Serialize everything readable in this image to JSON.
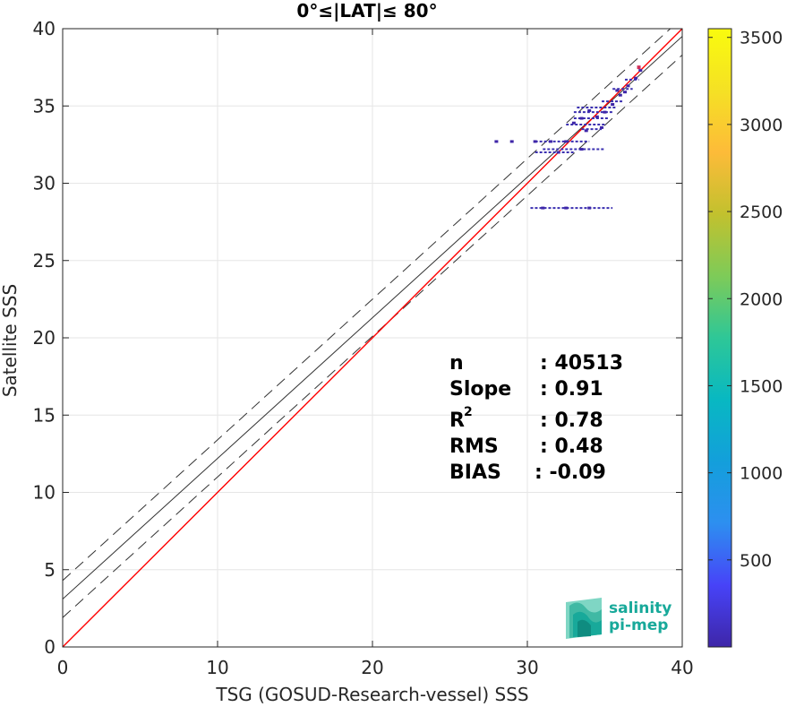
{
  "chart_data": {
    "type": "scatter",
    "title": "0°≤|LAT|≤ 80°",
    "xlabel": "TSG (GOSUD-Research-vessel) SSS",
    "ylabel": "Satellite SSS",
    "xlim": [
      0,
      40
    ],
    "ylim": [
      0,
      40
    ],
    "xticks": [
      "0",
      "10",
      "20",
      "30",
      "40"
    ],
    "yticks": [
      "0",
      "5",
      "10",
      "15",
      "20",
      "25",
      "30",
      "35",
      "40"
    ],
    "grid": true,
    "colorbar": {
      "range": [
        0,
        3550
      ],
      "ticks": [
        "500",
        "1000",
        "1500",
        "2000",
        "2500",
        "3000",
        "3500"
      ],
      "tick_values": [
        500,
        1000,
        1500,
        2000,
        2500,
        3000,
        3500
      ],
      "colormap": [
        "#3e26a8",
        "#4743f8",
        "#2d8ff0",
        "#139fdb",
        "#08b8c2",
        "#2ec797",
        "#7ecb58",
        "#c2c12e",
        "#fdbb39",
        "#f5e124",
        "#f9fb0e"
      ]
    },
    "lines": {
      "identity": {
        "slope": 1,
        "intercept": 0,
        "color": "#ff0000"
      },
      "fit": {
        "slope": 0.91,
        "intercept": 3.1,
        "color": "#000000"
      },
      "fit_upper": {
        "slope": 0.91,
        "intercept": 4.3,
        "style": "dashed"
      },
      "fit_lower": {
        "slope": 0.91,
        "intercept": 1.9,
        "style": "dashed"
      }
    },
    "points": [
      {
        "x": 34.5,
        "y": 34.3
      },
      {
        "x": 35.0,
        "y": 34.6
      },
      {
        "x": 35.5,
        "y": 35.1
      },
      {
        "x": 36.0,
        "y": 35.7
      },
      {
        "x": 36.5,
        "y": 36.3
      },
      {
        "x": 37.0,
        "y": 36.8
      },
      {
        "x": 37.3,
        "y": 37.3
      },
      {
        "x": 33.5,
        "y": 34.2
      },
      {
        "x": 34.0,
        "y": 34.7
      },
      {
        "x": 33.0,
        "y": 33.9
      },
      {
        "x": 34.8,
        "y": 33.6
      },
      {
        "x": 33.8,
        "y": 33.4
      },
      {
        "x": 32.5,
        "y": 32.7
      },
      {
        "x": 31.5,
        "y": 32.7
      },
      {
        "x": 30.5,
        "y": 32.7
      },
      {
        "x": 29.0,
        "y": 32.7
      },
      {
        "x": 28.0,
        "y": 32.7
      },
      {
        "x": 33.5,
        "y": 32.2
      },
      {
        "x": 32.0,
        "y": 32.0
      },
      {
        "x": 31.0,
        "y": 28.4
      },
      {
        "x": 32.5,
        "y": 28.4
      },
      {
        "x": 34.0,
        "y": 28.4
      },
      {
        "x": 35.8,
        "y": 36.0
      },
      {
        "x": 36.3,
        "y": 35.9
      }
    ],
    "segments": [
      {
        "x1": 33.0,
        "x2": 35.5,
        "y": 34.6
      },
      {
        "x1": 33.0,
        "x2": 35.2,
        "y": 34.2
      },
      {
        "x1": 32.5,
        "x2": 35.0,
        "y": 33.8
      },
      {
        "x1": 33.2,
        "x2": 35.8,
        "y": 34.9
      },
      {
        "x1": 30.5,
        "x2": 34.0,
        "y": 32.7
      },
      {
        "x1": 31.0,
        "x2": 35.0,
        "y": 32.2
      },
      {
        "x1": 30.5,
        "x2": 33.0,
        "y": 32.0
      },
      {
        "x1": 30.2,
        "x2": 35.5,
        "y": 28.4
      },
      {
        "x1": 34.8,
        "x2": 36.2,
        "y": 35.3
      },
      {
        "x1": 35.5,
        "x2": 36.8,
        "y": 36.1
      },
      {
        "x1": 36.3,
        "x2": 37.2,
        "y": 36.7
      },
      {
        "x1": 33.5,
        "x2": 34.8,
        "y": 33.5
      }
    ]
  },
  "stats": {
    "n_label": "n",
    "n_value": ": 40513",
    "slope_label": "Slope",
    "slope_value": ": 0.91",
    "r2_label": "R",
    "r2_sup": "2",
    "r2_value": ": 0.78",
    "rms_label": "RMS",
    "rms_value": ": 0.48",
    "bias_label": "BIAS",
    "bias_value": ": -0.09"
  },
  "logo": {
    "line1": "salinity",
    "line2": "pi-mep",
    "color": "#18a99a"
  }
}
